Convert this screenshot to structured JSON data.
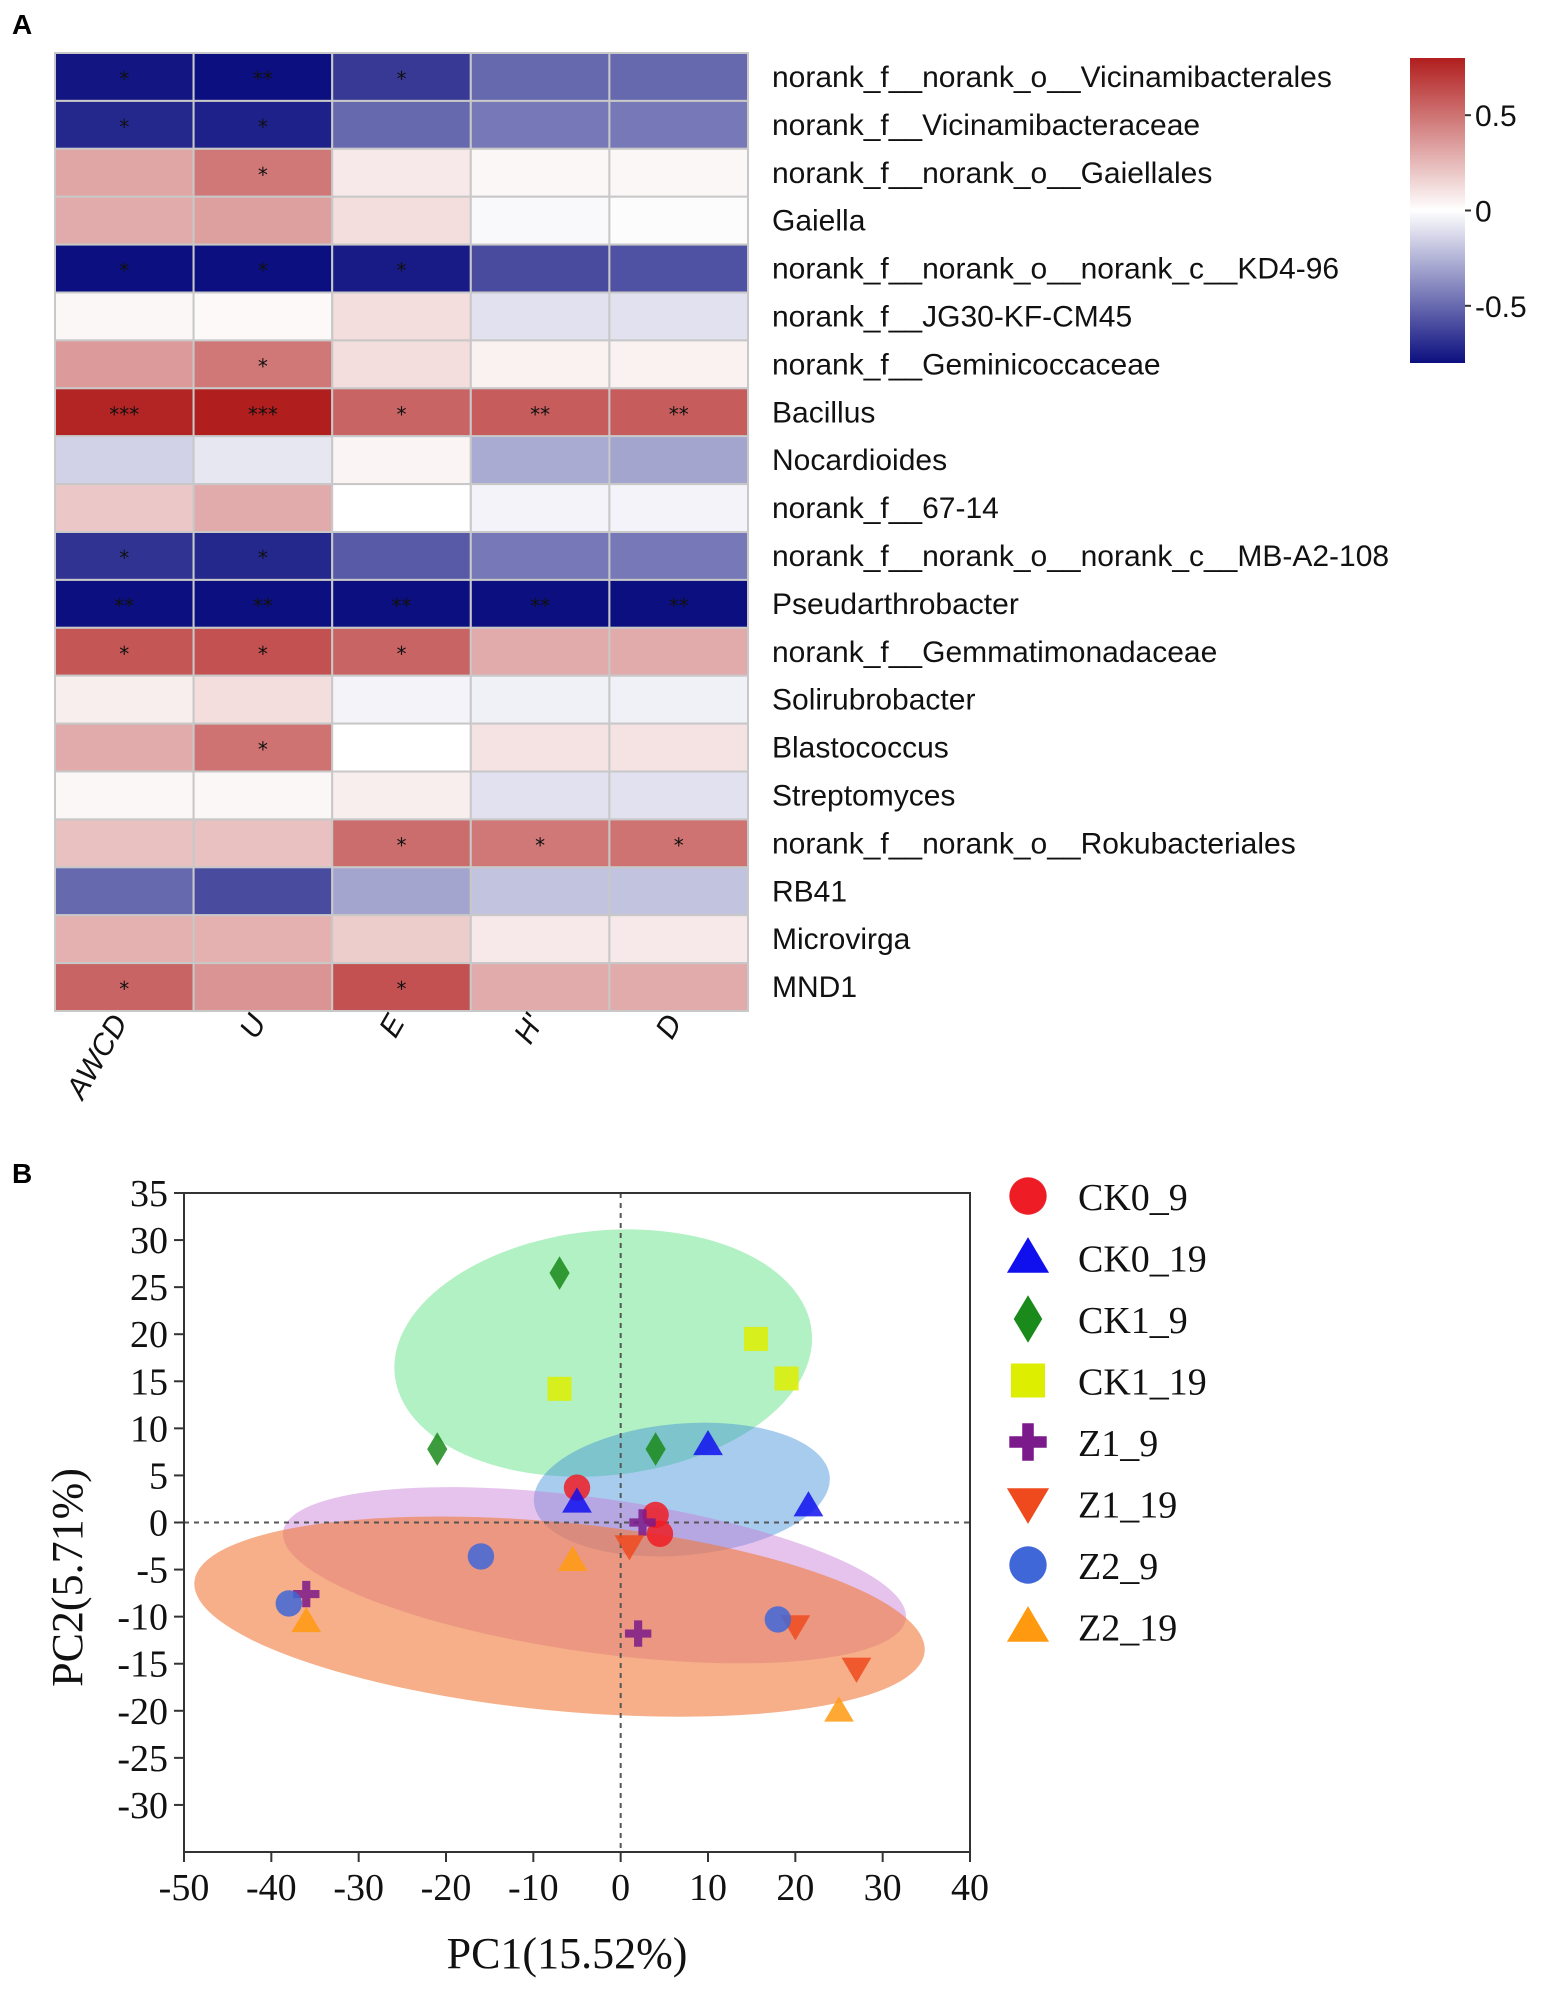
{
  "chart_data": [
    {
      "type": "heatmap",
      "panel_label": "A",
      "columns": [
        "AWCD",
        "U",
        "E",
        "H'",
        "D"
      ],
      "rows": [
        {
          "label": "norank_f__norank_o__Vicinamibacterales",
          "values": [
            -0.78,
            -0.82,
            -0.66,
            -0.5,
            -0.5
          ],
          "stars": [
            "*",
            "**",
            "*",
            "",
            ""
          ]
        },
        {
          "label": "norank_f__Vicinamibacteraceae",
          "values": [
            -0.72,
            -0.74,
            -0.5,
            -0.45,
            -0.45
          ],
          "stars": [
            "*",
            "*",
            "",
            "",
            ""
          ]
        },
        {
          "label": "norank_f__norank_o__Gaiellales",
          "values": [
            0.32,
            0.48,
            0.08,
            0.03,
            0.03
          ],
          "stars": [
            "",
            "*",
            "",
            "",
            ""
          ]
        },
        {
          "label": "Gaiella",
          "values": [
            0.3,
            0.34,
            0.12,
            -0.02,
            -0.01
          ],
          "stars": [
            "",
            "",
            "",
            "",
            ""
          ]
        },
        {
          "label": "norank_f__norank_o__norank_c__KD4-96",
          "values": [
            -0.8,
            -0.8,
            -0.76,
            -0.6,
            -0.58
          ],
          "stars": [
            "*",
            "*",
            "*",
            "",
            ""
          ]
        },
        {
          "label": "norank_f__JG30-KF-CM45",
          "values": [
            0.03,
            0.02,
            0.12,
            -0.1,
            -0.1
          ],
          "stars": [
            "",
            "",
            "",
            "",
            ""
          ]
        },
        {
          "label": "norank_f__Geminicoccaceae",
          "values": [
            0.36,
            0.48,
            0.12,
            0.05,
            0.05
          ],
          "stars": [
            "",
            "*",
            "",
            "",
            ""
          ]
        },
        {
          "label": "Bacillus",
          "values": [
            0.78,
            0.8,
            0.55,
            0.58,
            0.58
          ],
          "stars": [
            "***",
            "***",
            "*",
            "**",
            "**"
          ]
        },
        {
          "label": "Nocardioides",
          "values": [
            -0.15,
            -0.08,
            0.04,
            -0.28,
            -0.3
          ],
          "stars": [
            "",
            "",
            "",
            "",
            ""
          ]
        },
        {
          "label": "norank_f__67-14",
          "values": [
            0.2,
            0.3,
            0.0,
            -0.04,
            -0.04
          ],
          "stars": [
            "",
            "",
            "",
            "",
            ""
          ]
        },
        {
          "label": "norank_f__norank_o__norank_c__MB-A2-108",
          "values": [
            -0.68,
            -0.72,
            -0.55,
            -0.45,
            -0.45
          ],
          "stars": [
            "*",
            "*",
            "",
            "",
            ""
          ]
        },
        {
          "label": "Pseudarthrobacter",
          "values": [
            -0.95,
            -0.9,
            -0.9,
            -0.88,
            -0.88
          ],
          "stars": [
            "**",
            "**",
            "**",
            "**",
            "**"
          ]
        },
        {
          "label": "norank_f__Gemmatimonadaceae",
          "values": [
            0.6,
            0.62,
            0.55,
            0.3,
            0.3
          ],
          "stars": [
            "*",
            "*",
            "*",
            "",
            ""
          ]
        },
        {
          "label": "Solirubrobacter",
          "values": [
            0.06,
            0.12,
            -0.04,
            -0.05,
            -0.05
          ],
          "stars": [
            "",
            "",
            "",
            "",
            ""
          ]
        },
        {
          "label": "Blastococcus",
          "values": [
            0.3,
            0.5,
            0.0,
            0.1,
            0.1
          ],
          "stars": [
            "",
            "*",
            "",
            "",
            ""
          ]
        },
        {
          "label": "Streptomyces",
          "values": [
            0.03,
            0.03,
            0.06,
            -0.1,
            -0.1
          ],
          "stars": [
            "",
            "",
            "",
            "",
            ""
          ]
        },
        {
          "label": "norank_f__norank_o__Rokubacteriales",
          "values": [
            0.22,
            0.22,
            0.52,
            0.48,
            0.5
          ],
          "stars": [
            "",
            "",
            "*",
            "*",
            "*"
          ]
        },
        {
          "label": "RB41",
          "values": [
            -0.5,
            -0.6,
            -0.3,
            -0.2,
            -0.2
          ],
          "stars": [
            "",
            "",
            "",
            "",
            ""
          ]
        },
        {
          "label": "Microvirga",
          "values": [
            0.28,
            0.28,
            0.18,
            0.08,
            0.08
          ],
          "stars": [
            "",
            "",
            "",
            "",
            ""
          ]
        },
        {
          "label": "MND1",
          "values": [
            0.55,
            0.38,
            0.62,
            0.3,
            0.3
          ],
          "stars": [
            "*",
            "",
            "*",
            "",
            ""
          ]
        }
      ],
      "color_scale": {
        "min": -0.8,
        "max": 0.8,
        "low": "#0c0f7f",
        "mid": "#ffffff",
        "high": "#b11e1e",
        "ticks": [
          0.5,
          0,
          -0.5
        ],
        "tick_labels": [
          "0.5",
          "0",
          "-0.5"
        ]
      }
    },
    {
      "type": "scatter",
      "panel_label": "B",
      "xlabel": "PC1(15.52%)",
      "ylabel": "PC2(5.71%)",
      "xlim": [
        -50,
        40
      ],
      "ylim": [
        -35,
        35
      ],
      "xticks": [
        -50,
        -40,
        -30,
        -20,
        -10,
        0,
        10,
        20,
        30,
        40
      ],
      "yticks": [
        35,
        30,
        25,
        20,
        15,
        10,
        5,
        0,
        -5,
        -10,
        -15,
        -20,
        -25,
        -30
      ],
      "series": [
        {
          "name": "CK0_9",
          "color": "#ee1c25",
          "marker": "circle",
          "points": [
            [
              4,
              0.8
            ],
            [
              4.5,
              -1.2
            ],
            [
              -5,
              3.7
            ]
          ]
        },
        {
          "name": "CK0_19",
          "color": "#1010ee",
          "marker": "triangle",
          "points": [
            [
              10,
              8.3
            ],
            [
              21.5,
              1.8
            ],
            [
              -5,
              2.2
            ]
          ]
        },
        {
          "name": "CK1_9",
          "color": "#1a8a1a",
          "marker": "diamond",
          "points": [
            [
              -7,
              26.5
            ],
            [
              -21,
              7.8
            ],
            [
              4,
              7.8
            ]
          ]
        },
        {
          "name": "CK1_19",
          "color": "#ddee00",
          "marker": "square",
          "points": [
            [
              15.5,
              19.5
            ],
            [
              19,
              15.3
            ],
            [
              -7,
              14.2
            ]
          ]
        },
        {
          "name": "Z1_9",
          "color": "#7b1a8a",
          "marker": "plus",
          "points": [
            [
              2.5,
              0
            ],
            [
              2,
              -11.8
            ],
            [
              -36,
              -7.6
            ]
          ]
        },
        {
          "name": "Z1_19",
          "color": "#ee4a1e",
          "marker": "triangle-down",
          "points": [
            [
              1,
              -2.5
            ],
            [
              20,
              -11
            ],
            [
              27,
              -15.5
            ]
          ]
        },
        {
          "name": "Z2_9",
          "color": "#3f67d8",
          "marker": "circle",
          "points": [
            [
              -16,
              -3.6
            ],
            [
              -38,
              -8.6
            ],
            [
              18,
              -10.3
            ]
          ]
        },
        {
          "name": "Z2_19",
          "color": "#ff9a10",
          "marker": "triangle",
          "points": [
            [
              -5.5,
              -4
            ],
            [
              -36,
              -10.5
            ],
            [
              25,
              -20
            ]
          ]
        }
      ],
      "ellipses": [
        {
          "group": "CK1",
          "color": "#3ddc6a",
          "opacity": 0.4,
          "center": [
            -2,
            18
          ],
          "radii": [
            24,
            13
          ],
          "angle_deg": 6
        },
        {
          "group": "CK0",
          "color": "#3f8fd8",
          "opacity": 0.45,
          "center": [
            7,
            3.5
          ],
          "radii": [
            17,
            7
          ],
          "angle_deg": 5
        },
        {
          "group": "Z1",
          "color": "#c77ad8",
          "opacity": 0.45,
          "center": [
            -3,
            -5.6
          ],
          "radii": [
            36,
            8.2
          ],
          "angle_deg": -8
        },
        {
          "group": "Z2",
          "color": "#f07a3a",
          "opacity": 0.6,
          "center": [
            -7,
            -10
          ],
          "radii": [
            42,
            10
          ],
          "angle_deg": -5.5
        }
      ],
      "legend_position": "right"
    }
  ]
}
